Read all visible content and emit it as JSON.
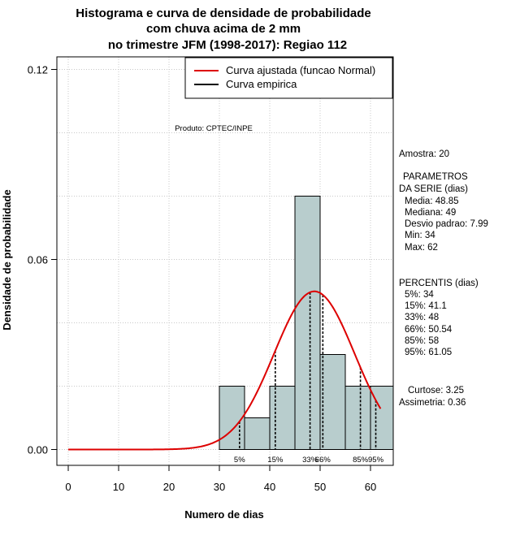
{
  "chart_data": {
    "type": "histogram",
    "title_lines": [
      "Histograma e curva de densidade de probabilidade",
      "com chuva acima de 2 mm",
      "no trimestre JFM (1998-2017): Regiao 112"
    ],
    "xlabel": "Numero de dias",
    "ylabel": "Densidade de probabilidade",
    "xlim": [
      -2.5,
      65
    ],
    "ylim": [
      0,
      0.125
    ],
    "xticks": [
      0,
      10,
      20,
      30,
      40,
      50,
      60
    ],
    "yticks": [
      0.0,
      0.06,
      0.12
    ],
    "ytick_labels": [
      "0.00",
      "0.06",
      "0.12"
    ],
    "grid_x": [
      0,
      10,
      20,
      30,
      40,
      50,
      60
    ],
    "grid_y": [
      0.0,
      0.02,
      0.04,
      0.06,
      0.08,
      0.1,
      0.12
    ],
    "bins": [
      {
        "start": 30,
        "end": 35,
        "density": 0.02
      },
      {
        "start": 35,
        "end": 40,
        "density": 0.01
      },
      {
        "start": 40,
        "end": 45,
        "density": 0.02
      },
      {
        "start": 45,
        "end": 50,
        "density": 0.08
      },
      {
        "start": 50,
        "end": 55,
        "density": 0.03
      },
      {
        "start": 55,
        "end": 60,
        "density": 0.02
      },
      {
        "start": 60,
        "end": 65,
        "density": 0.02
      }
    ],
    "normal_curve": {
      "mean": 48.85,
      "sd": 7.99,
      "x_from": 0,
      "x_to": 62,
      "color": "#dd0000"
    },
    "histogram_fill": "#b8cdcd",
    "percentile_lines": [
      {
        "label": "5%",
        "x": 34
      },
      {
        "label": "15%",
        "x": 41.1
      },
      {
        "label": "33%",
        "x": 48
      },
      {
        "label": "66%",
        "x": 50.54
      },
      {
        "label": "85%",
        "x": 58
      },
      {
        "label": "95%",
        "x": 61.05
      }
    ],
    "legend": {
      "position": "top-right",
      "entries": [
        {
          "label": "Curva ajustada (funcao Normal)",
          "color": "#dd0000"
        },
        {
          "label": "Curva empirica",
          "color": "#000000"
        }
      ]
    },
    "annotation": "Produto: CPTEC/INPE"
  },
  "side_panel": {
    "sample": "Amostra: 20",
    "params_title_1": "PARAMETROS",
    "params_title_2": "DA SERIE (dias)",
    "params": [
      "Media: 48.85",
      "Mediana: 49",
      "Desvio padrao: 7.99",
      "Min: 34",
      "Max: 62"
    ],
    "percentis_title": "PERCENTIS (dias)",
    "percentis": [
      "5%: 34",
      "15%: 41.1",
      "33%: 48",
      "66%: 50.54",
      "85%: 58",
      "95%: 61.05"
    ],
    "curtose": "Curtose: 3.25",
    "assimetria": "Assimetria: 0.36"
  }
}
